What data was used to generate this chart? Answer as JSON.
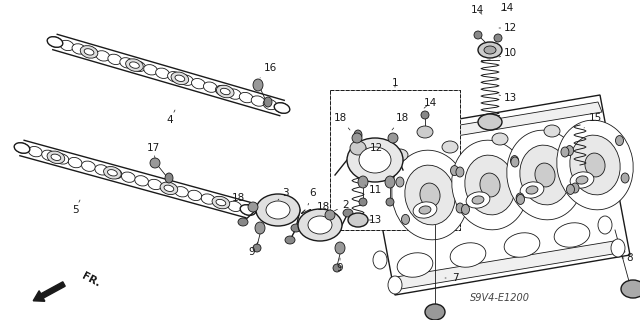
{
  "bg_color": "#ffffff",
  "diagram_color": "#1a1a1a",
  "label_color": "#000000",
  "watermark": "S9V4-E1200",
  "label_fontsize": 7.5,
  "head_color": "#333333",
  "fr_text": "FR."
}
